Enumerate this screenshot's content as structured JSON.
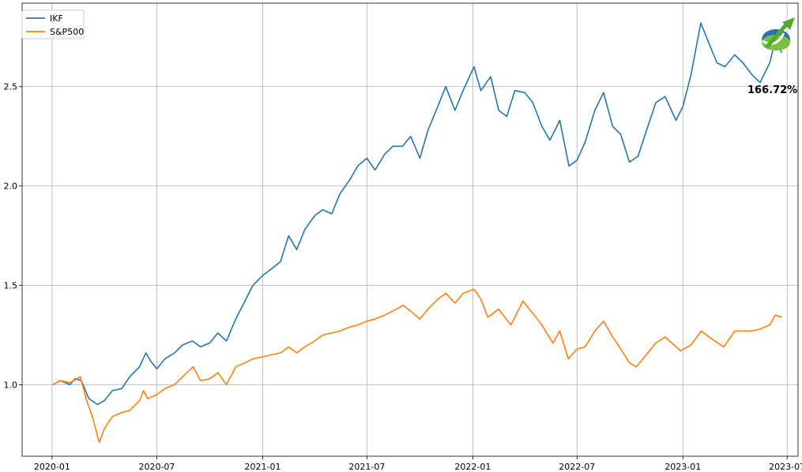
{
  "chart_data": {
    "type": "line",
    "title": "",
    "xlabel": "",
    "ylabel": "",
    "grid": true,
    "legend_position": "top-left",
    "xlim": [
      "2019-11-10",
      "2023-07-20"
    ],
    "ylim": [
      0.64,
      2.92
    ],
    "x_ticks": [
      "2020-01",
      "2020-07",
      "2021-01",
      "2021-07",
      "2022-01",
      "2022-07",
      "2023-01",
      "2023-07"
    ],
    "y_ticks": [
      "1.0",
      "1.5",
      "2.0",
      "2.5"
    ],
    "annotation": "166.72%",
    "logo_icon": "rising-arrow-logo-icon",
    "series": [
      {
        "name": "IKF",
        "color": "#1f77b4",
        "points": [
          [
            "2020-01-02",
            1.0
          ],
          [
            "2020-01-15",
            1.02
          ],
          [
            "2020-02-01",
            1.0
          ],
          [
            "2020-02-10",
            1.03
          ],
          [
            "2020-02-21",
            1.02
          ],
          [
            "2020-03-05",
            0.93
          ],
          [
            "2020-03-20",
            0.9
          ],
          [
            "2020-04-01",
            0.92
          ],
          [
            "2020-04-15",
            0.97
          ],
          [
            "2020-05-01",
            0.98
          ],
          [
            "2020-05-15",
            1.04
          ],
          [
            "2020-06-01",
            1.09
          ],
          [
            "2020-06-12",
            1.16
          ],
          [
            "2020-06-20",
            1.12
          ],
          [
            "2020-07-01",
            1.08
          ],
          [
            "2020-07-15",
            1.13
          ],
          [
            "2020-08-01",
            1.16
          ],
          [
            "2020-08-15",
            1.2
          ],
          [
            "2020-09-01",
            1.22
          ],
          [
            "2020-09-15",
            1.19
          ],
          [
            "2020-10-01",
            1.21
          ],
          [
            "2020-10-15",
            1.26
          ],
          [
            "2020-10-30",
            1.22
          ],
          [
            "2020-11-15",
            1.33
          ],
          [
            "2020-12-01",
            1.42
          ],
          [
            "2020-12-15",
            1.5
          ],
          [
            "2021-01-01",
            1.55
          ],
          [
            "2021-01-15",
            1.58
          ],
          [
            "2021-02-01",
            1.62
          ],
          [
            "2021-02-15",
            1.75
          ],
          [
            "2021-03-01",
            1.68
          ],
          [
            "2021-03-15",
            1.78
          ],
          [
            "2021-04-01",
            1.85
          ],
          [
            "2021-04-15",
            1.88
          ],
          [
            "2021-05-01",
            1.86
          ],
          [
            "2021-05-15",
            1.96
          ],
          [
            "2021-06-01",
            2.03
          ],
          [
            "2021-06-15",
            2.1
          ],
          [
            "2021-07-01",
            2.14
          ],
          [
            "2021-07-15",
            2.08
          ],
          [
            "2021-08-01",
            2.16
          ],
          [
            "2021-08-15",
            2.2
          ],
          [
            "2021-09-01",
            2.2
          ],
          [
            "2021-09-15",
            2.25
          ],
          [
            "2021-10-01",
            2.14
          ],
          [
            "2021-10-15",
            2.28
          ],
          [
            "2021-11-01",
            2.4
          ],
          [
            "2021-11-15",
            2.5
          ],
          [
            "2021-12-01",
            2.38
          ],
          [
            "2021-12-15",
            2.48
          ],
          [
            "2022-01-03",
            2.6
          ],
          [
            "2022-01-15",
            2.48
          ],
          [
            "2022-02-01",
            2.55
          ],
          [
            "2022-02-15",
            2.38
          ],
          [
            "2022-03-01",
            2.35
          ],
          [
            "2022-03-15",
            2.48
          ],
          [
            "2022-04-01",
            2.47
          ],
          [
            "2022-04-15",
            2.42
          ],
          [
            "2022-05-01",
            2.3
          ],
          [
            "2022-05-15",
            2.23
          ],
          [
            "2022-06-01",
            2.33
          ],
          [
            "2022-06-17",
            2.1
          ],
          [
            "2022-07-01",
            2.13
          ],
          [
            "2022-07-15",
            2.22
          ],
          [
            "2022-08-01",
            2.38
          ],
          [
            "2022-08-16",
            2.47
          ],
          [
            "2022-09-01",
            2.3
          ],
          [
            "2022-09-15",
            2.26
          ],
          [
            "2022-09-30",
            2.12
          ],
          [
            "2022-10-15",
            2.15
          ],
          [
            "2022-11-01",
            2.3
          ],
          [
            "2022-11-15",
            2.42
          ],
          [
            "2022-12-01",
            2.45
          ],
          [
            "2022-12-20",
            2.33
          ],
          [
            "2023-01-01",
            2.4
          ],
          [
            "2023-01-15",
            2.56
          ],
          [
            "2023-02-01",
            2.82
          ],
          [
            "2023-02-15",
            2.72
          ],
          [
            "2023-03-01",
            2.62
          ],
          [
            "2023-03-15",
            2.6
          ],
          [
            "2023-04-01",
            2.66
          ],
          [
            "2023-04-15",
            2.62
          ],
          [
            "2023-05-01",
            2.56
          ],
          [
            "2023-05-15",
            2.52
          ],
          [
            "2023-06-01",
            2.62
          ],
          [
            "2023-06-10",
            2.73
          ],
          [
            "2023-06-22",
            2.67
          ]
        ]
      },
      {
        "name": "S&P500",
        "color": "#ff7f0e",
        "points": [
          [
            "2020-01-02",
            1.0
          ],
          [
            "2020-01-15",
            1.02
          ],
          [
            "2020-02-01",
            1.01
          ],
          [
            "2020-02-19",
            1.04
          ],
          [
            "2020-03-01",
            0.92
          ],
          [
            "2020-03-10",
            0.85
          ],
          [
            "2020-03-23",
            0.71
          ],
          [
            "2020-04-01",
            0.78
          ],
          [
            "2020-04-15",
            0.84
          ],
          [
            "2020-05-01",
            0.86
          ],
          [
            "2020-05-15",
            0.87
          ],
          [
            "2020-06-01",
            0.92
          ],
          [
            "2020-06-08",
            0.97
          ],
          [
            "2020-06-15",
            0.93
          ],
          [
            "2020-07-01",
            0.95
          ],
          [
            "2020-07-15",
            0.98
          ],
          [
            "2020-08-01",
            1.0
          ],
          [
            "2020-08-15",
            1.04
          ],
          [
            "2020-09-02",
            1.09
          ],
          [
            "2020-09-15",
            1.02
          ],
          [
            "2020-10-01",
            1.03
          ],
          [
            "2020-10-15",
            1.06
          ],
          [
            "2020-10-30",
            1.0
          ],
          [
            "2020-11-15",
            1.09
          ],
          [
            "2020-12-01",
            1.11
          ],
          [
            "2020-12-15",
            1.13
          ],
          [
            "2021-01-01",
            1.14
          ],
          [
            "2021-01-15",
            1.15
          ],
          [
            "2021-02-01",
            1.16
          ],
          [
            "2021-02-15",
            1.19
          ],
          [
            "2021-03-01",
            1.16
          ],
          [
            "2021-03-15",
            1.19
          ],
          [
            "2021-04-01",
            1.22
          ],
          [
            "2021-04-15",
            1.25
          ],
          [
            "2021-05-01",
            1.26
          ],
          [
            "2021-05-15",
            1.27
          ],
          [
            "2021-06-01",
            1.29
          ],
          [
            "2021-06-15",
            1.3
          ],
          [
            "2021-07-01",
            1.32
          ],
          [
            "2021-07-15",
            1.33
          ],
          [
            "2021-08-01",
            1.35
          ],
          [
            "2021-08-15",
            1.37
          ],
          [
            "2021-09-02",
            1.4
          ],
          [
            "2021-09-15",
            1.37
          ],
          [
            "2021-10-01",
            1.33
          ],
          [
            "2021-10-15",
            1.38
          ],
          [
            "2021-11-01",
            1.43
          ],
          [
            "2021-11-15",
            1.46
          ],
          [
            "2021-12-01",
            1.41
          ],
          [
            "2021-12-15",
            1.46
          ],
          [
            "2022-01-03",
            1.48
          ],
          [
            "2022-01-15",
            1.43
          ],
          [
            "2022-01-27",
            1.34
          ],
          [
            "2022-02-15",
            1.38
          ],
          [
            "2022-03-08",
            1.3
          ],
          [
            "2022-03-29",
            1.42
          ],
          [
            "2022-04-15",
            1.36
          ],
          [
            "2022-05-01",
            1.3
          ],
          [
            "2022-05-20",
            1.21
          ],
          [
            "2022-06-01",
            1.27
          ],
          [
            "2022-06-16",
            1.13
          ],
          [
            "2022-07-01",
            1.18
          ],
          [
            "2022-07-15",
            1.19
          ],
          [
            "2022-08-01",
            1.27
          ],
          [
            "2022-08-16",
            1.32
          ],
          [
            "2022-09-01",
            1.24
          ],
          [
            "2022-09-15",
            1.18
          ],
          [
            "2022-09-30",
            1.11
          ],
          [
            "2022-10-12",
            1.09
          ],
          [
            "2022-11-01",
            1.16
          ],
          [
            "2022-11-15",
            1.21
          ],
          [
            "2022-12-01",
            1.24
          ],
          [
            "2022-12-28",
            1.17
          ],
          [
            "2023-01-15",
            1.2
          ],
          [
            "2023-02-02",
            1.27
          ],
          [
            "2023-02-15",
            1.24
          ],
          [
            "2023-03-13",
            1.19
          ],
          [
            "2023-04-01",
            1.27
          ],
          [
            "2023-04-15",
            1.27
          ],
          [
            "2023-05-01",
            1.27
          ],
          [
            "2023-05-15",
            1.28
          ],
          [
            "2023-06-01",
            1.3
          ],
          [
            "2023-06-10",
            1.35
          ],
          [
            "2023-06-22",
            1.34
          ]
        ]
      }
    ]
  }
}
